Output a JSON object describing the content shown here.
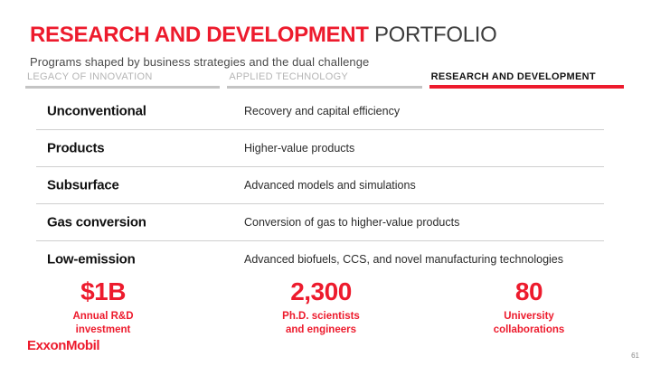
{
  "slide": {
    "title": {
      "emphasis": "RESEARCH AND DEVELOPMENT",
      "rest": " PORTFOLIO"
    },
    "subtitle": "Programs shaped by business strategies and the dual challenge",
    "tabs": [
      {
        "label": "LEGACY OF INNOVATION",
        "active": false
      },
      {
        "label": "APPLIED TECHNOLOGY",
        "active": false
      },
      {
        "label": "RESEARCH AND DEVELOPMENT",
        "active": true
      }
    ],
    "table": {
      "rows": [
        {
          "label": "Unconventional",
          "description": "Recovery and capital efficiency"
        },
        {
          "label": "Products",
          "description": "Higher-value products"
        },
        {
          "label": "Subsurface",
          "description": "Advanced models and simulations"
        },
        {
          "label": "Gas conversion",
          "description": "Conversion of gas to higher-value products"
        },
        {
          "label": "Low-emission",
          "description": "Advanced biofuels, CCS, and novel manufacturing technologies"
        }
      ]
    },
    "stats": [
      {
        "value": "$1B",
        "caption_line1": "Annual R&D",
        "caption_line2": "investment"
      },
      {
        "value": "2,300",
        "caption_line1": "Ph.D. scientists",
        "caption_line2": "and engineers"
      },
      {
        "value": "80",
        "caption_line1": "University",
        "caption_line2": "collaborations"
      }
    ],
    "footer": {
      "logo_text": "ExxonMobil",
      "page_number": "61"
    },
    "colors": {
      "brand_red": "#ed1b2d",
      "inactive_tab_gray": "#b5b5b5",
      "divider_gray": "#cfcfcf"
    }
  }
}
